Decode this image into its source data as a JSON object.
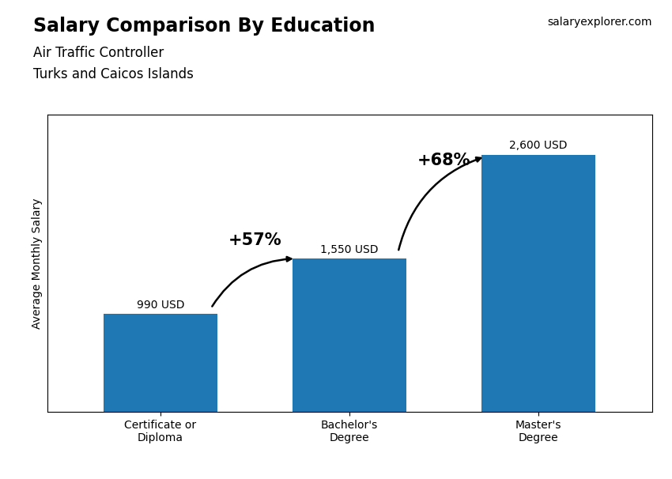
{
  "chart_data": {
    "type": "bar",
    "title": "Salary Comparison By Education",
    "subtitle": [
      "Air Traffic Controller",
      "Turks and Caicos Islands"
    ],
    "ylabel": "Average Monthly Salary",
    "source": "salaryexplorer.com",
    "categories": [
      "Certificate or\nDiploma",
      "Bachelor's\nDegree",
      "Master's\nDegree"
    ],
    "values": [
      990,
      1550,
      2600
    ],
    "value_labels": [
      "990 USD",
      "1,550 USD",
      "2,600 USD"
    ],
    "data_labels": true,
    "annotations": [
      {
        "text": "+57%",
        "from": "Certificate or\nDiploma",
        "to": "Bachelor's\nDegree"
      },
      {
        "text": "+68%",
        "from": "Bachelor's\nDegree",
        "to": "Master's\nDegree"
      }
    ],
    "ylim": [
      0,
      3000
    ],
    "tick_labels": "x",
    "grid": false
  }
}
